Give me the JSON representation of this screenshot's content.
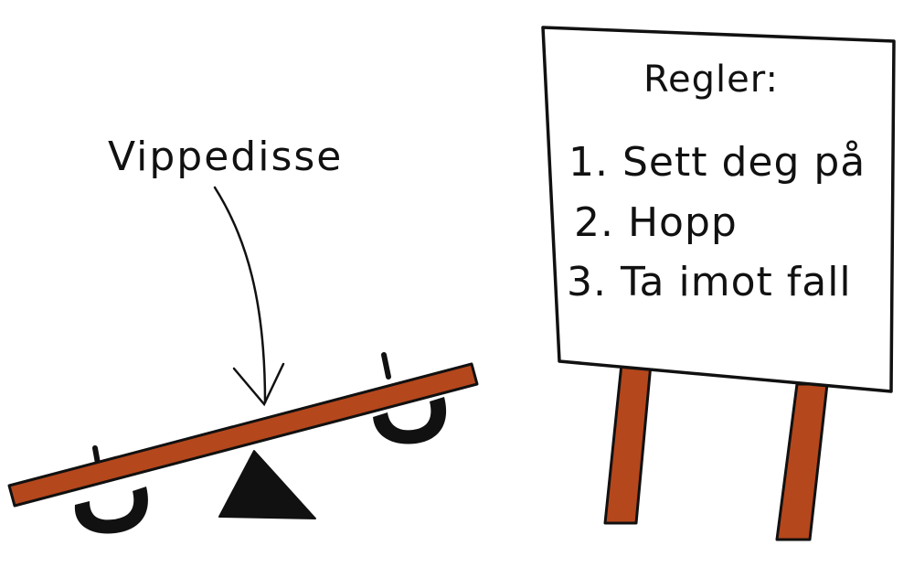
{
  "labels": {
    "seesaw_label": "Vippedisse"
  },
  "sign": {
    "title": "Regler:",
    "rules": [
      "1. Sett deg på",
      "2. Hopp",
      "3. Ta imot fall"
    ]
  },
  "colors": {
    "wood": "#b5471c",
    "outline": "#111111",
    "fulcrum": "#111111",
    "sign_face": "#ffffff"
  }
}
